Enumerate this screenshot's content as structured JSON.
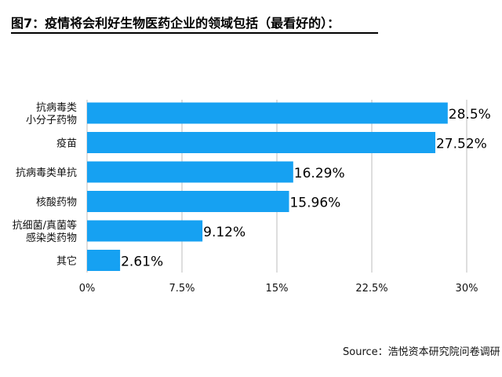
{
  "title": "图7：疫情将会利好生物医药企业的领域包括（最看好的）：",
  "source": "Source：浩悦资本研究院问卷调研",
  "chart_data": {
    "type": "bar",
    "orientation": "horizontal",
    "categories": [
      [
        "抗病毒类",
        "小分子药物"
      ],
      [
        "疫苗"
      ],
      [
        "抗病毒类单抗"
      ],
      [
        "核酸药物"
      ],
      [
        "抗细菌/真菌等",
        "感染类药物"
      ],
      [
        "其它"
      ]
    ],
    "values": [
      28.5,
      27.52,
      16.29,
      15.96,
      9.12,
      2.61
    ],
    "value_labels": [
      "28.5%",
      "27.52%",
      "16.29%",
      "15.96%",
      "9.12%",
      "2.61%"
    ],
    "xlim": [
      0,
      30
    ],
    "xticks": [
      0,
      7.5,
      15,
      22.5,
      30
    ],
    "xtick_labels": [
      "0%",
      "7.5%",
      "15%",
      "22.5%",
      "30%"
    ],
    "grid": "vertical",
    "bar_color": "#16A1F2",
    "grid_color": "#BDBDBD"
  }
}
